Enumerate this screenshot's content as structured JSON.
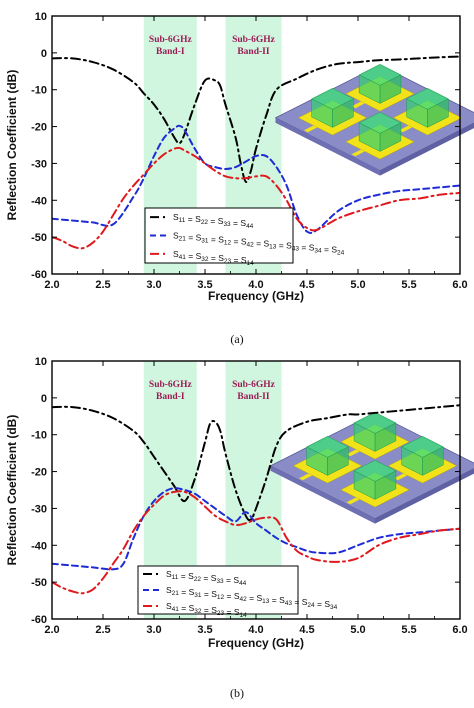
{
  "figure": {
    "panel_labels": [
      "(a)",
      "(b)"
    ]
  },
  "colors": {
    "band_fill": "#c9f5d9",
    "band_text": "#9b1c55",
    "s11_color": "#000000",
    "s21_color": "#1f2bd6",
    "s41_color": "#e0191e",
    "substrate": "#8a8cc8",
    "patch": "#f2e21a",
    "dra": "#3fdc7a"
  },
  "chart_data": [
    {
      "type": "line",
      "panel": "(a)",
      "title": "",
      "xlabel": "Frequency (GHz)",
      "ylabel": "Reflection Coefficient (dB)",
      "xlim": [
        2.0,
        6.0
      ],
      "ylim": [
        -60,
        10
      ],
      "xticks": [
        "2.0",
        "2.5",
        "3.0",
        "3.5",
        "4.0",
        "4.5",
        "5.0",
        "5.5",
        "6.0"
      ],
      "yticks": [
        "10",
        "0",
        "-10",
        "-20",
        "-30",
        "-40",
        "-50",
        "-60"
      ],
      "bands": [
        {
          "label_line1": "Sub-6GHz",
          "label_line2": "Band-I",
          "x_range": [
            2.9,
            3.42
          ]
        },
        {
          "label_line1": "Sub-6GHz",
          "label_line2": "Band-II",
          "x_range": [
            3.7,
            4.25
          ]
        }
      ],
      "legend_position": "lower-left",
      "series": [
        {
          "name": "S11 = S22 = S33 = S44",
          "style": "dashdot",
          "color": "#000000",
          "x": [
            2.0,
            2.2,
            2.4,
            2.6,
            2.8,
            2.9,
            3.0,
            3.1,
            3.2,
            3.25,
            3.3,
            3.4,
            3.5,
            3.6,
            3.65,
            3.7,
            3.8,
            3.85,
            3.9,
            3.95,
            4.0,
            4.1,
            4.2,
            4.4,
            4.6,
            4.8,
            5.0,
            5.2,
            5.4,
            5.6,
            5.8,
            6.0
          ],
          "y": [
            -1.5,
            -1.5,
            -2.5,
            -4.5,
            -8,
            -11,
            -14,
            -18,
            -23,
            -24.5,
            -22,
            -14,
            -7.5,
            -7.5,
            -9,
            -14,
            -23,
            -30,
            -35,
            -32,
            -26,
            -17,
            -10,
            -7,
            -4.5,
            -3,
            -2.5,
            -2,
            -1.8,
            -1.5,
            -1.2,
            -1
          ]
        },
        {
          "name": "S21 = S31 = S12 = S42 = S13 = S43 = S34 = S24",
          "style": "dashed",
          "color": "#1f2bd6",
          "x": [
            2.0,
            2.2,
            2.4,
            2.6,
            2.8,
            2.9,
            3.0,
            3.1,
            3.2,
            3.25,
            3.3,
            3.4,
            3.5,
            3.6,
            3.7,
            3.8,
            3.9,
            4.0,
            4.1,
            4.2,
            4.3,
            4.4,
            4.5,
            4.6,
            4.8,
            5.0,
            5.2,
            5.4,
            5.6,
            5.8,
            6.0
          ],
          "y": [
            -45,
            -45.5,
            -46,
            -46.5,
            -39,
            -34,
            -28,
            -23,
            -20.5,
            -19.8,
            -21,
            -26,
            -30,
            -31,
            -31.5,
            -31,
            -29.5,
            -28,
            -28,
            -31,
            -36,
            -44,
            -48.5,
            -48,
            -43,
            -40,
            -38.5,
            -37.5,
            -37,
            -36.5,
            -36
          ]
        },
        {
          "name": "S41 = S32 = S23 = S14",
          "style": "dashdot",
          "color": "#e0191e",
          "x": [
            2.0,
            2.1,
            2.2,
            2.3,
            2.4,
            2.5,
            2.6,
            2.7,
            2.8,
            2.9,
            3.0,
            3.1,
            3.2,
            3.25,
            3.3,
            3.4,
            3.5,
            3.6,
            3.7,
            3.8,
            3.9,
            4.0,
            4.1,
            4.2,
            4.3,
            4.4,
            4.5,
            4.6,
            4.8,
            5.0,
            5.2,
            5.4,
            5.6,
            5.8,
            6.0
          ],
          "y": [
            -50,
            -51,
            -52.5,
            -53,
            -51.5,
            -48.5,
            -44,
            -39.5,
            -36,
            -33,
            -30,
            -27.5,
            -26,
            -25.8,
            -26.5,
            -28,
            -30,
            -32,
            -33.5,
            -34,
            -34,
            -33.5,
            -33.5,
            -36,
            -40,
            -45,
            -47.5,
            -48,
            -45,
            -43,
            -41.5,
            -40,
            -39.5,
            -38.5,
            -38
          ]
        }
      ]
    },
    {
      "type": "line",
      "panel": "(b)",
      "title": "",
      "xlabel": "Frequency (GHz)",
      "ylabel": "Reflection Coefficient (dB)",
      "xlim": [
        2.0,
        6.0
      ],
      "ylim": [
        -60,
        10
      ],
      "xticks": [
        "2.0",
        "2.5",
        "3.0",
        "3.5",
        "4.0",
        "4.5",
        "5.0",
        "5.5",
        "6.0"
      ],
      "yticks": [
        "10",
        "0",
        "-10",
        "-20",
        "-30",
        "-40",
        "-50",
        "-60"
      ],
      "bands": [
        {
          "label_line1": "Sub-6GHz",
          "label_line2": "Band-I",
          "x_range": [
            2.9,
            3.42
          ]
        },
        {
          "label_line1": "Sub-6GHz",
          "label_line2": "Band-II",
          "x_range": [
            3.7,
            4.25
          ]
        }
      ],
      "legend_position": "lower-center",
      "series": [
        {
          "name": "S11 = S22 = S33 = S44",
          "style": "dashdot",
          "color": "#000000",
          "x": [
            2.0,
            2.2,
            2.4,
            2.6,
            2.8,
            2.9,
            3.0,
            3.1,
            3.2,
            3.3,
            3.4,
            3.5,
            3.55,
            3.6,
            3.65,
            3.7,
            3.8,
            3.9,
            3.95,
            4.0,
            4.1,
            4.2,
            4.3,
            4.5,
            4.7,
            4.9,
            5.0,
            5.2,
            5.4,
            5.6,
            5.8,
            6.0
          ],
          "y": [
            -2.5,
            -2.5,
            -3.5,
            -5.5,
            -9,
            -12,
            -16,
            -20,
            -24,
            -28,
            -22,
            -12,
            -7,
            -6.5,
            -9,
            -15,
            -25,
            -32,
            -33,
            -30,
            -22,
            -13,
            -9,
            -6.5,
            -5.5,
            -4.5,
            -4.5,
            -4,
            -3.5,
            -3,
            -2.5,
            -2
          ]
        },
        {
          "name": "S21 = S31 = S12 = S42 = S13 = S43 = S24 = S34",
          "style": "dashed",
          "color": "#1f2bd6",
          "x": [
            2.0,
            2.2,
            2.4,
            2.6,
            2.7,
            2.8,
            2.9,
            3.0,
            3.1,
            3.2,
            3.3,
            3.4,
            3.5,
            3.6,
            3.7,
            3.8,
            3.9,
            4.0,
            4.1,
            4.2,
            4.3,
            4.4,
            4.5,
            4.6,
            4.8,
            5.0,
            5.2,
            5.4,
            5.6,
            5.8,
            6.0
          ],
          "y": [
            -45,
            -45.5,
            -46,
            -46.5,
            -45,
            -38,
            -32,
            -28,
            -25.5,
            -24.5,
            -25,
            -26,
            -28,
            -30,
            -32,
            -33.5,
            -31,
            -34,
            -36,
            -38,
            -39.5,
            -40.5,
            -41.5,
            -42,
            -42,
            -40,
            -38,
            -37,
            -36.5,
            -36,
            -35.5
          ]
        },
        {
          "name": "S41 = S32 = S23 = S14",
          "style": "dashdot",
          "color": "#e0191e",
          "x": [
            2.0,
            2.1,
            2.2,
            2.3,
            2.4,
            2.5,
            2.6,
            2.7,
            2.8,
            2.9,
            3.0,
            3.1,
            3.2,
            3.3,
            3.4,
            3.5,
            3.6,
            3.7,
            3.8,
            3.9,
            4.0,
            4.1,
            4.2,
            4.3,
            4.4,
            4.5,
            4.6,
            4.8,
            5.0,
            5.2,
            5.4,
            5.6,
            5.8,
            6.0
          ],
          "y": [
            -50,
            -51.5,
            -52.5,
            -53,
            -52,
            -49,
            -45,
            -41,
            -36,
            -32,
            -29,
            -26.5,
            -25.5,
            -25.5,
            -27,
            -29.5,
            -32,
            -33.5,
            -34.5,
            -34,
            -33,
            -32.5,
            -33,
            -38,
            -41.5,
            -43,
            -44,
            -44.5,
            -43.5,
            -40,
            -38,
            -37,
            -36,
            -35.5
          ]
        }
      ]
    }
  ]
}
